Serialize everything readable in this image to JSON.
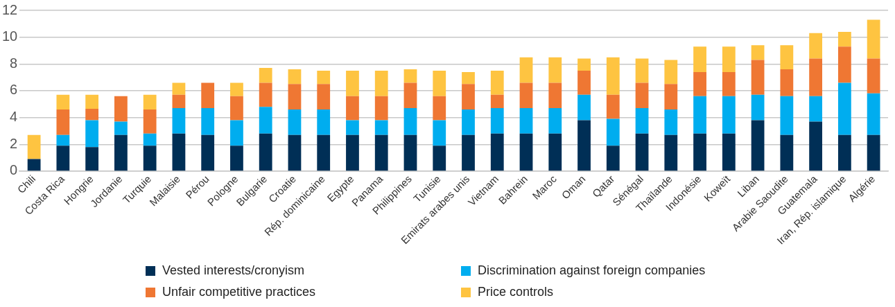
{
  "chart_data": {
    "type": "bar",
    "stacked": true,
    "categories": [
      "Chili",
      "Costa Rica",
      "Hongrie",
      "Jordanie",
      "Turquie",
      "Malaisie",
      "Pérou",
      "Pologne",
      "Bulgarie",
      "Croatie",
      "Rép. dominicaine",
      "Egypte",
      "Panama",
      "Philippines",
      "Tunisie",
      "Emirats arabes unis",
      "Vietnam",
      "Bahrein",
      "Maroc",
      "Oman",
      "Qatar",
      "Sénégal",
      "Thaïlande",
      "Indonésie",
      "Koweït",
      "Liban",
      "Arabie Saoudite",
      "Guatemala",
      "Iran, Rép. islamique",
      "Algérie"
    ],
    "series": [
      {
        "name": "Vested interests/cronyism",
        "color": "#002f56",
        "values": [
          0.9,
          1.9,
          1.8,
          2.7,
          1.9,
          2.8,
          2.7,
          1.9,
          2.8,
          2.7,
          2.7,
          2.7,
          2.7,
          2.7,
          1.9,
          2.7,
          2.8,
          2.8,
          2.8,
          3.8,
          1.9,
          2.8,
          2.7,
          2.8,
          2.8,
          3.8,
          2.7,
          3.7,
          2.7,
          2.7
        ]
      },
      {
        "name": "Discrimination against foreign companies",
        "color": "#00adef",
        "values": [
          0,
          0.8,
          2.0,
          1.0,
          0.9,
          1.9,
          2.0,
          1.9,
          2.0,
          1.9,
          1.9,
          1.1,
          1.1,
          2.0,
          1.9,
          1.9,
          1.9,
          1.9,
          1.9,
          1.9,
          2.0,
          1.9,
          1.9,
          2.8,
          2.8,
          1.9,
          2.9,
          1.9,
          3.9,
          3.1
        ]
      },
      {
        "name": "Unfair competitive practices",
        "color": "#ef7733",
        "values": [
          0,
          1.9,
          0.85,
          1.9,
          1.8,
          1.0,
          1.9,
          1.8,
          1.8,
          1.9,
          1.9,
          1.8,
          1.8,
          1.9,
          1.8,
          1.9,
          1.0,
          1.9,
          1.9,
          1.8,
          1.8,
          1.9,
          1.9,
          1.8,
          1.8,
          2.6,
          2.0,
          2.8,
          2.7,
          2.6
        ]
      },
      {
        "name": "Price controls",
        "color": "#fec441",
        "values": [
          1.8,
          1.1,
          1.05,
          0,
          1.1,
          0.9,
          0,
          1.0,
          1.1,
          1.1,
          1.0,
          1.9,
          1.9,
          1.0,
          1.9,
          0.9,
          1.8,
          1.9,
          1.9,
          0.9,
          2.8,
          1.8,
          1.8,
          1.9,
          1.9,
          1.1,
          1.8,
          1.9,
          1.1,
          2.9
        ]
      }
    ],
    "ylim": [
      0,
      12
    ],
    "yticks": [
      0,
      2,
      4,
      6,
      8,
      10,
      12
    ],
    "grid": "y",
    "legend": "bottom"
  }
}
